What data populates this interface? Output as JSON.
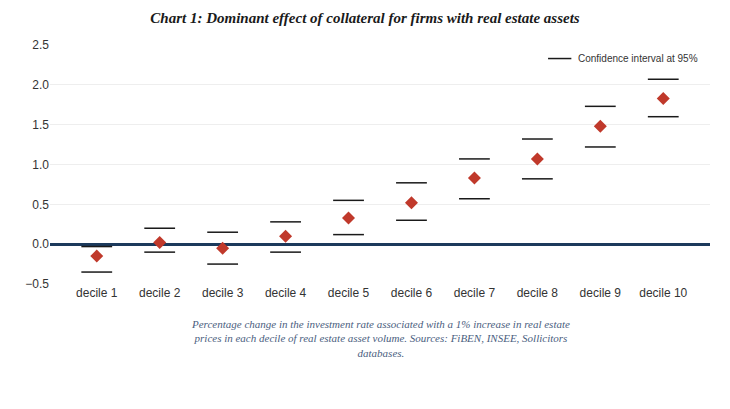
{
  "chart_data": {
    "type": "scatter",
    "title": "Chart 1: Dominant effect of collateral for firms with real estate assets",
    "caption": "Percentage change in the investment rate associated with a 1% increase in real estate\nprices in each decile of real estate asset volume. Sources: FiBEN, INSEE, Sollicitors\ndatabases.",
    "categories": [
      "decile 1",
      "decile 2",
      "decile 3",
      "decile 4",
      "decile 5",
      "decile 6",
      "decile 7",
      "decile 8",
      "decile 9",
      "decile 10"
    ],
    "values": [
      -0.15,
      0.02,
      -0.05,
      0.1,
      0.33,
      0.52,
      0.83,
      1.07,
      1.48,
      1.83
    ],
    "ci_upper": [
      -0.03,
      0.2,
      0.15,
      0.28,
      0.55,
      0.77,
      1.07,
      1.32,
      1.73,
      2.07
    ],
    "ci_lower": [
      -0.35,
      -0.1,
      -0.25,
      -0.1,
      0.12,
      0.3,
      0.57,
      0.82,
      1.22,
      1.6
    ],
    "ci_label": "Confidence interval at 95%",
    "color": "#c0392b",
    "marker": "diamond",
    "ylim": [
      -0.5,
      2.5
    ],
    "yticks": [
      {
        "value": -0.5,
        "label": "−0.5"
      },
      {
        "value": 0,
        "label": "0.0"
      },
      {
        "value": 0.5,
        "label": "0.5"
      },
      {
        "value": 1,
        "label": "1.0"
      },
      {
        "value": 1.5,
        "label": "1.5"
      },
      {
        "value": 2,
        "label": "2.0"
      },
      {
        "value": 2.5,
        "label": "2.5"
      }
    ],
    "grid": true
  }
}
